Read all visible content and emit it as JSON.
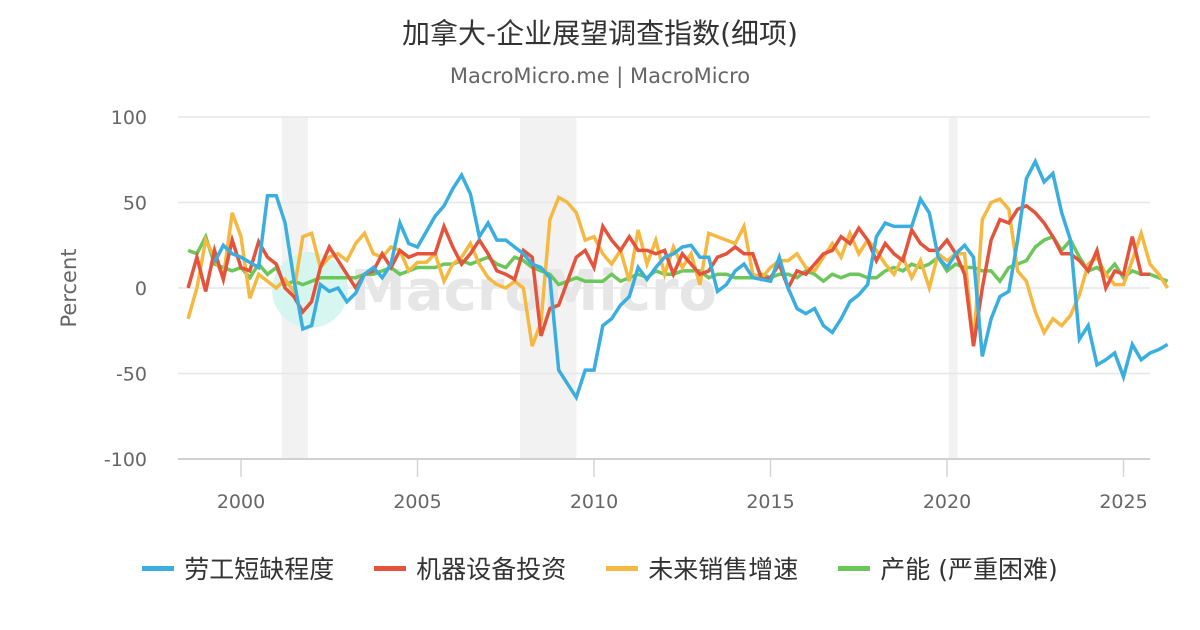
{
  "header": {
    "title": "加拿大-企业展望调查指数(细项)",
    "subtitle": "MacroMicro.me | MacroMicro"
  },
  "watermark": "MacroMicro",
  "colors": {
    "labor": "#3aaede",
    "machinery": "#e4533b",
    "sales": "#f5b841",
    "capacity": "#6cc75a",
    "grid": "#e6e6e6",
    "recession": "#f2f2f2"
  },
  "chart_data": {
    "type": "line",
    "title": "加拿大-企业展望调查指数(细项)",
    "subtitle": "MacroMicro.me | MacroMicro",
    "xlabel": "",
    "ylabel": "Percent",
    "ylim": [
      -100,
      100
    ],
    "yticks": [
      100,
      50,
      0,
      -50,
      -100
    ],
    "xticks": [
      2000,
      2005,
      2010,
      2015,
      2020,
      2025
    ],
    "grid": true,
    "legend_position": "bottom",
    "recession_bands": [
      [
        2001.15,
        2001.9
      ],
      [
        2007.9,
        2009.5
      ],
      [
        2020.05,
        2020.3
      ]
    ],
    "x_start": 1998.5,
    "x_step": 0.25,
    "series": [
      {
        "name": "劳工短缺程度",
        "color": "#3aaede",
        "values": [
          null,
          null,
          null,
          15,
          25,
          20,
          18,
          15,
          12,
          54,
          54,
          38,
          5,
          -24,
          -22,
          2,
          -2,
          0,
          -8,
          -3,
          8,
          12,
          6,
          14,
          38,
          26,
          24,
          33,
          42,
          48,
          58,
          66,
          55,
          30,
          38,
          28,
          28,
          24,
          20,
          14,
          12,
          6,
          -48,
          -56,
          -64,
          -48,
          -48,
          -22,
          -18,
          -10,
          -5,
          12,
          5,
          12,
          18,
          20,
          24,
          25,
          18,
          18,
          -2,
          2,
          10,
          14,
          6,
          5,
          4,
          18,
          0,
          -12,
          -15,
          -12,
          -22,
          -26,
          -18,
          -8,
          -4,
          2,
          30,
          38,
          36,
          36,
          36,
          52,
          44,
          18,
          12,
          20,
          25,
          18,
          -40,
          -18,
          -5,
          -2,
          28,
          64,
          74,
          62,
          67,
          44,
          28,
          -30,
          -22,
          -45,
          -42,
          -38,
          -52,
          -33,
          -42,
          -38,
          -36,
          -33
        ]
      },
      {
        "name": "机器设备投资",
        "color": "#e4533b",
        "values": [
          0,
          18,
          -2,
          22,
          5,
          28,
          12,
          10,
          27,
          18,
          14,
          0,
          -5,
          -14,
          -8,
          12,
          24,
          16,
          8,
          0,
          8,
          10,
          20,
          12,
          22,
          18,
          20,
          20,
          20,
          36,
          24,
          14,
          20,
          28,
          20,
          10,
          8,
          5,
          22,
          18,
          -28,
          -12,
          -10,
          4,
          18,
          22,
          12,
          36,
          28,
          22,
          30,
          22,
          22,
          20,
          22,
          8,
          20,
          14,
          8,
          10,
          18,
          20,
          24,
          20,
          20,
          5,
          6,
          14,
          0,
          10,
          8,
          14,
          20,
          22,
          30,
          26,
          35,
          28,
          16,
          26,
          20,
          16,
          34,
          26,
          22,
          22,
          28,
          20,
          8,
          -34,
          0,
          28,
          40,
          38,
          46,
          48,
          44,
          38,
          30,
          20,
          20,
          16,
          10,
          22,
          0,
          10,
          8,
          30,
          8,
          8
        ]
      },
      {
        "name": "未来销售增速",
        "color": "#f5b841",
        "values": [
          -18,
          0,
          28,
          18,
          6,
          44,
          30,
          -6,
          8,
          4,
          0,
          5,
          -2,
          30,
          32,
          12,
          18,
          20,
          16,
          26,
          32,
          20,
          18,
          24,
          22,
          10,
          15,
          15,
          20,
          4,
          14,
          18,
          26,
          14,
          6,
          2,
          0,
          4,
          0,
          -34,
          -20,
          40,
          53,
          50,
          44,
          28,
          30,
          20,
          14,
          22,
          4,
          34,
          14,
          28,
          8,
          24,
          12,
          20,
          2,
          32,
          30,
          28,
          26,
          36,
          8,
          6,
          12,
          16,
          16,
          20,
          12,
          10,
          18,
          26,
          18,
          32,
          20,
          28,
          22,
          14,
          8,
          18,
          6,
          16,
          0,
          20,
          16,
          20,
          20,
          -34,
          40,
          50,
          52,
          46,
          10,
          4,
          -14,
          -26,
          -18,
          -22,
          -16,
          -4,
          14,
          18,
          8,
          2,
          2,
          16,
          32,
          14,
          8,
          0
        ]
      },
      {
        "name": "产能 (严重困难)",
        "color": "#6cc75a",
        "values": [
          22,
          20,
          30,
          14,
          12,
          10,
          12,
          6,
          14,
          8,
          12,
          2,
          4,
          2,
          4,
          6,
          6,
          6,
          6,
          6,
          8,
          8,
          10,
          12,
          8,
          10,
          12,
          12,
          12,
          14,
          14,
          16,
          14,
          16,
          18,
          14,
          12,
          18,
          16,
          12,
          10,
          8,
          2,
          4,
          6,
          4,
          4,
          4,
          8,
          4,
          6,
          8,
          6,
          10,
          8,
          8,
          10,
          10,
          10,
          6,
          8,
          8,
          6,
          6,
          6,
          8,
          6,
          8,
          8,
          6,
          10,
          8,
          4,
          8,
          6,
          8,
          8,
          6,
          6,
          10,
          12,
          10,
          14,
          12,
          14,
          18,
          10,
          14,
          12,
          12,
          10,
          10,
          4,
          12,
          14,
          16,
          24,
          28,
          30,
          22,
          28,
          18,
          10,
          12,
          8,
          14,
          6,
          10,
          8,
          8,
          6,
          4
        ]
      }
    ]
  },
  "y_axis": {
    "label": "Percent",
    "ticks": [
      "100",
      "50",
      "0",
      "-50",
      "-100"
    ]
  },
  "x_axis": {
    "ticks": [
      "2000",
      "2005",
      "2010",
      "2015",
      "2020",
      "2025"
    ]
  },
  "legend": [
    {
      "label": "劳工短缺程度",
      "color": "#3aaede"
    },
    {
      "label": "机器设备投资",
      "color": "#e4533b"
    },
    {
      "label": "未来销售增速",
      "color": "#f5b841"
    },
    {
      "label": "产能 (严重困难)",
      "color": "#6cc75a"
    }
  ]
}
